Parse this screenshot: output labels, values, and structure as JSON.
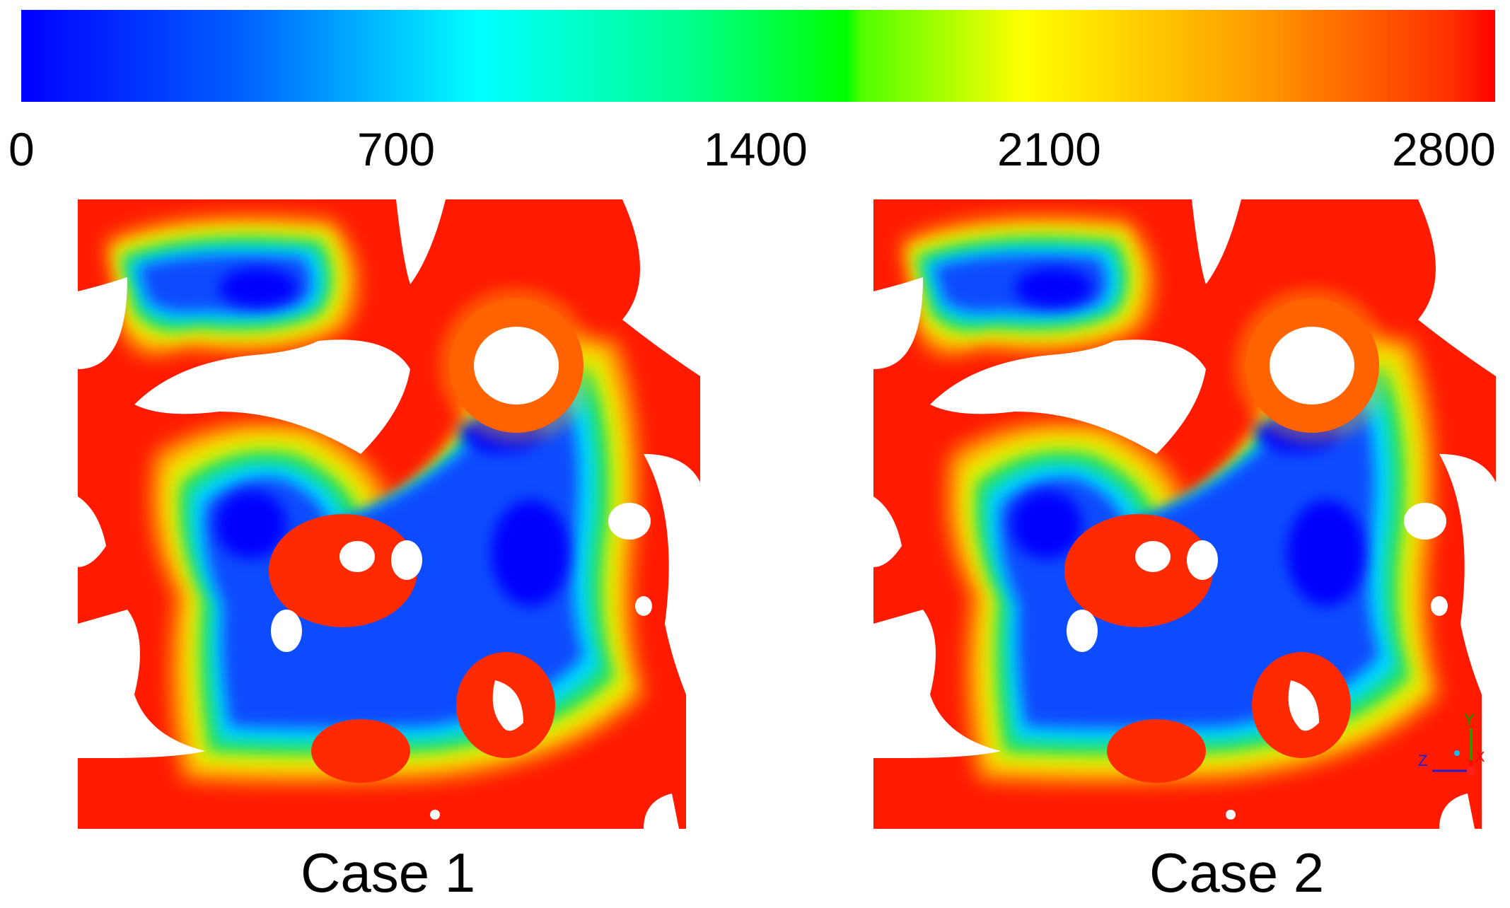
{
  "colorbar": {
    "ticks": [
      "0",
      "700",
      "1400",
      "2100",
      "2800"
    ],
    "colors": [
      "#0000ff",
      "#0080ff",
      "#00ffff",
      "#00ff80",
      "#00ff00",
      "#80ff00",
      "#ffff00",
      "#ffaa00",
      "#ff5000",
      "#ff0000"
    ]
  },
  "panels": [
    {
      "label": "Case 1"
    },
    {
      "label": "Case 2"
    }
  ],
  "triad": {
    "y": "Y",
    "z": "Z",
    "x": "X"
  }
}
